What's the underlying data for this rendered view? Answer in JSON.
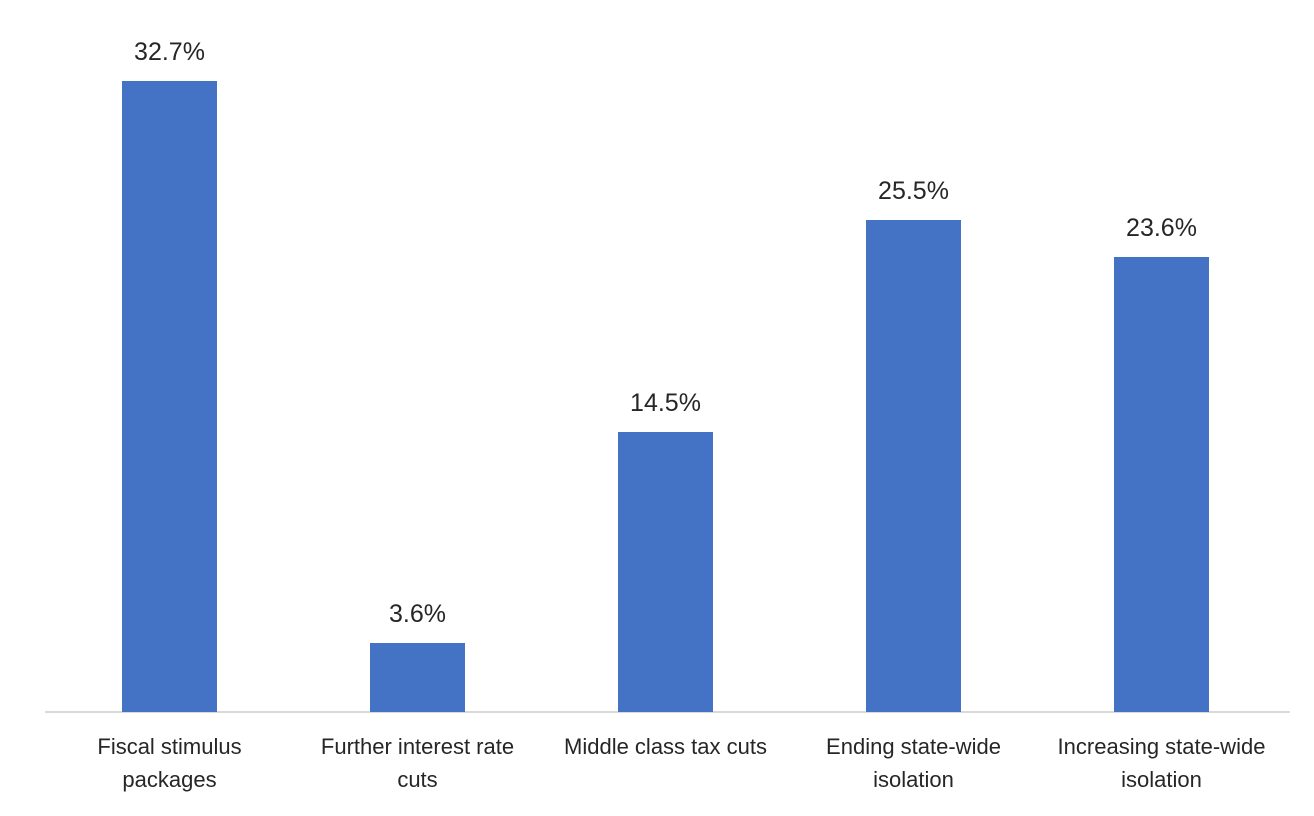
{
  "chart_data": {
    "type": "bar",
    "title": "",
    "xlabel": "",
    "ylabel": "",
    "categories": [
      "Fiscal stimulus packages",
      "Further interest rate cuts",
      "Middle class tax cuts",
      "Ending state-wide isolation",
      "Increasing state-wide isolation"
    ],
    "values": [
      32.7,
      3.6,
      14.5,
      25.5,
      23.6
    ],
    "value_labels": [
      "32.7%",
      "3.6%",
      "14.5%",
      "25.5%",
      "23.6%"
    ],
    "ylim": [
      0,
      35
    ],
    "grid": false,
    "legend": null,
    "bar_color": "#4472c4",
    "axis_color": "#d9d9d9"
  },
  "display": {
    "category_lines": [
      "Fiscal stimulus\npackages",
      "Further interest rate\ncuts",
      "Middle class tax cuts",
      "Ending state-wide\nisolation",
      "Increasing state-wide\nisolation"
    ]
  }
}
